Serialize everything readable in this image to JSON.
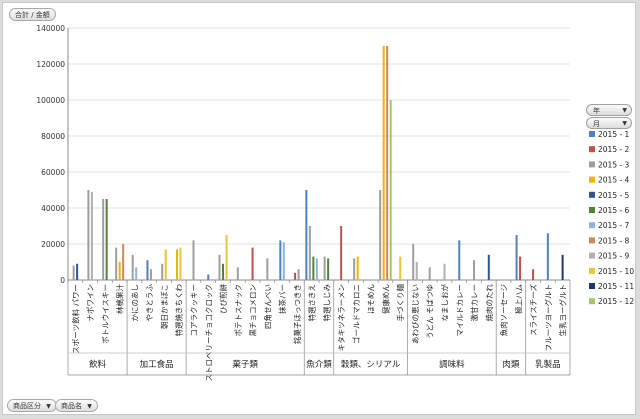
{
  "top_filter": {
    "label": "合計 / 金額"
  },
  "legend_fields": [
    {
      "label": "年",
      "arrow": "▼"
    },
    {
      "label": "月",
      "arrow": "▼"
    }
  ],
  "axis_fields": [
    {
      "label": "商品区分",
      "arrow": "▼"
    },
    {
      "label": "商品名",
      "arrow": "▼"
    }
  ],
  "chart_data": {
    "type": "bar",
    "ylim": [
      0,
      140000
    ],
    "yticks": [
      "0",
      "20000",
      "40000",
      "60000",
      "80000",
      "100000",
      "120000",
      "140000"
    ],
    "categories": [
      "スポーツ飲料 パワー",
      "ナポワイン",
      "ボトルウイスキー",
      "林檎果汁",
      "かにのあし",
      "やきとうふ",
      "朝日かまぼこ",
      "特選焼きちくわ",
      "コアラクッキー",
      "ストロベリーチョコクロック",
      "ひび煎餅",
      "ポテトスナック",
      "黒チョコメロン",
      "四角せんべい",
      "抹茶バー",
      "銘菓子ほっつきき",
      "特選さきえ",
      "特選しじみ",
      "キタキツネラーメン",
      "ゴールドマカロニ",
      "ほそめん",
      "健康めん",
      "手づくり麺",
      "あわびの恵じない",
      "うどん そばつゆ",
      "なましおが",
      "マイルドカレー",
      "激甘カレー",
      "焼肉のたれ",
      "魚肉ソーセージ",
      "極上ハム",
      "スライスチーズ",
      "フルーツヨーグルト",
      "生乳ヨーグルト"
    ],
    "groups": [
      {
        "name": "飲料",
        "start": 0,
        "end": 3
      },
      {
        "name": "加工食品",
        "start": 4,
        "end": 7
      },
      {
        "name": "菓子類",
        "start": 8,
        "end": 15
      },
      {
        "name": "魚介類",
        "start": 16,
        "end": 17
      },
      {
        "name": "穀類、シリアル",
        "start": 18,
        "end": 22
      },
      {
        "name": "調味料",
        "start": 23,
        "end": 28
      },
      {
        "name": "肉類",
        "start": 29,
        "end": 30
      },
      {
        "name": "乳製品",
        "start": 31,
        "end": 33
      }
    ],
    "series": [
      {
        "name": "2015 - 1",
        "color": "#4f81bd",
        "values": [
          0,
          0,
          0,
          0,
          0,
          11000,
          0,
          0,
          0,
          3000,
          0,
          0,
          0,
          0,
          22000,
          0,
          50000,
          0,
          0,
          0,
          0,
          0,
          0,
          0,
          0,
          0,
          22000,
          0,
          0,
          0,
          25000,
          0,
          26000,
          0
        ]
      },
      {
        "name": "2015 - 2",
        "color": "#c0504d",
        "values": [
          0,
          0,
          0,
          0,
          0,
          0,
          0,
          0,
          0,
          0,
          0,
          0,
          18000,
          0,
          0,
          4000,
          0,
          0,
          30000,
          0,
          0,
          0,
          0,
          0,
          0,
          0,
          0,
          0,
          0,
          0,
          13000,
          6000,
          0,
          0
        ]
      },
      {
        "name": "2015 - 3",
        "color": "#9e9e9e",
        "values": [
          8000,
          50000,
          45000,
          18000,
          14000,
          6000,
          9000,
          0,
          22000,
          0,
          14000,
          7000,
          0,
          12000,
          0,
          6000,
          30000,
          13000,
          0,
          12000,
          0,
          50000,
          0,
          20000,
          7000,
          0,
          0,
          11000,
          0,
          0,
          0,
          0,
          0,
          0
        ]
      },
      {
        "name": "2015 - 4",
        "color": "#f0b400",
        "values": [
          0,
          0,
          0,
          10000,
          0,
          0,
          0,
          17000,
          0,
          0,
          0,
          0,
          0,
          0,
          0,
          0,
          0,
          0,
          0,
          13000,
          0,
          130000,
          0,
          0,
          0,
          0,
          0,
          0,
          0,
          0,
          0,
          0,
          0,
          0
        ]
      },
      {
        "name": "2015 - 5",
        "color": "#2f5597",
        "values": [
          9000,
          0,
          0,
          0,
          0,
          0,
          0,
          0,
          0,
          0,
          0,
          0,
          0,
          0,
          0,
          0,
          0,
          0,
          0,
          0,
          0,
          0,
          0,
          0,
          0,
          0,
          0,
          0,
          14000,
          0,
          0,
          0,
          0,
          0
        ]
      },
      {
        "name": "2015 - 6",
        "color": "#548235",
        "values": [
          0,
          0,
          45000,
          0,
          0,
          0,
          0,
          0,
          0,
          0,
          9000,
          0,
          0,
          0,
          0,
          0,
          13000,
          12000,
          0,
          0,
          0,
          0,
          0,
          0,
          0,
          0,
          0,
          0,
          0,
          0,
          0,
          0,
          0,
          0
        ]
      },
      {
        "name": "2015 - 7",
        "color": "#8db3e2",
        "values": [
          0,
          0,
          0,
          0,
          7000,
          0,
          0,
          0,
          0,
          0,
          0,
          0,
          0,
          0,
          21000,
          0,
          12000,
          0,
          0,
          0,
          0,
          0,
          0,
          0,
          0,
          0,
          0,
          0,
          0,
          0,
          0,
          0,
          0,
          0
        ]
      },
      {
        "name": "2015 - 8",
        "color": "#c98a55",
        "values": [
          0,
          0,
          0,
          20000,
          0,
          0,
          0,
          0,
          0,
          0,
          0,
          0,
          0,
          0,
          0,
          0,
          0,
          0,
          0,
          0,
          0,
          130000,
          0,
          0,
          0,
          0,
          0,
          0,
          0,
          0,
          0,
          0,
          0,
          0
        ]
      },
      {
        "name": "2015 - 9",
        "color": "#b0b0b0",
        "values": [
          0,
          49000,
          0,
          0,
          0,
          0,
          0,
          0,
          0,
          0,
          0,
          0,
          0,
          0,
          0,
          0,
          0,
          0,
          0,
          0,
          0,
          0,
          0,
          10000,
          0,
          9000,
          0,
          0,
          0,
          0,
          0,
          0,
          0,
          0
        ]
      },
      {
        "name": "2015 - 10",
        "color": "#e8c63a",
        "values": [
          0,
          0,
          0,
          0,
          0,
          0,
          17000,
          18000,
          0,
          0,
          25000,
          0,
          0,
          0,
          0,
          0,
          0,
          0,
          0,
          0,
          0,
          0,
          13000,
          0,
          0,
          0,
          0,
          0,
          0,
          0,
          0,
          0,
          0,
          0
        ]
      },
      {
        "name": "2015 - 11",
        "color": "#1f3864",
        "values": [
          0,
          0,
          0,
          0,
          0,
          0,
          0,
          0,
          0,
          0,
          0,
          0,
          0,
          0,
          0,
          0,
          0,
          0,
          0,
          0,
          0,
          0,
          0,
          0,
          0,
          0,
          0,
          0,
          0,
          0,
          0,
          0,
          0,
          14000
        ]
      },
      {
        "name": "2015 - 12",
        "color": "#a9c16a",
        "values": [
          0,
          0,
          0,
          0,
          0,
          0,
          0,
          0,
          0,
          0,
          0,
          0,
          0,
          0,
          0,
          0,
          0,
          0,
          0,
          0,
          0,
          100000,
          0,
          0,
          0,
          0,
          0,
          0,
          0,
          0,
          0,
          0,
          0,
          0
        ]
      }
    ]
  }
}
